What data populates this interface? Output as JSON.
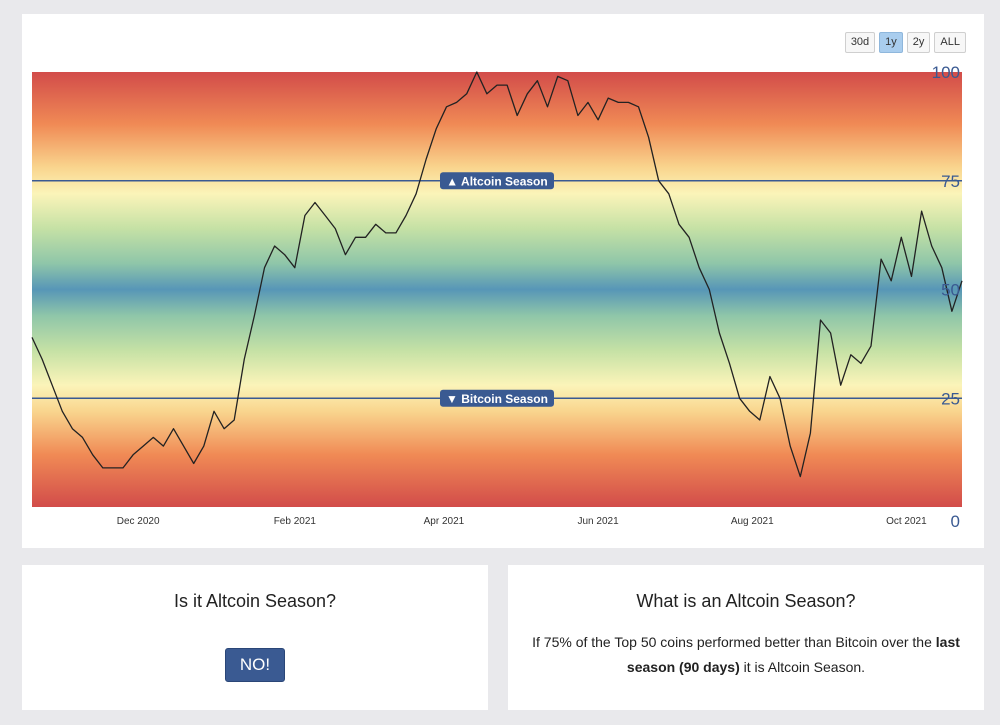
{
  "range_buttons": [
    {
      "label": "30d",
      "active": false
    },
    {
      "label": "1y",
      "active": true
    },
    {
      "label": "2y",
      "active": false
    },
    {
      "label": "ALL",
      "active": false
    }
  ],
  "colors": {
    "line": "#222222",
    "threshold_line": "#3a5a92",
    "label_bg": "#3a5a92",
    "tick": "#333333",
    "y_tick": "#3a5a92"
  },
  "chart_data": {
    "type": "line",
    "ylim": [
      0,
      100
    ],
    "y_ticks": [
      100,
      75,
      50,
      25,
      0
    ],
    "x_ticks": [
      {
        "x": "2020-12-01",
        "label": "Dec 2020"
      },
      {
        "x": "2021-02-01",
        "label": "Feb 2021"
      },
      {
        "x": "2021-04-01",
        "label": "Apr 2021"
      },
      {
        "x": "2021-06-01",
        "label": "Jun 2021"
      },
      {
        "x": "2021-08-01",
        "label": "Aug 2021"
      },
      {
        "x": "2021-10-01",
        "label": "Oct 2021"
      }
    ],
    "xlim": [
      "2020-10-20",
      "2021-10-23"
    ],
    "bands": [
      {
        "label": "▲ Altcoin Season",
        "y": 75
      },
      {
        "label": "▼ Bitcoin Season",
        "y": 25
      }
    ],
    "series": [
      {
        "x": [
          "2020-10-20",
          "2020-10-24",
          "2020-10-28",
          "2020-11-01",
          "2020-11-05",
          "2020-11-09",
          "2020-11-13",
          "2020-11-17",
          "2020-11-21",
          "2020-11-25",
          "2020-11-29",
          "2020-12-03",
          "2020-12-07",
          "2020-12-11",
          "2020-12-15",
          "2020-12-19",
          "2020-12-23",
          "2020-12-27",
          "2020-12-31",
          "2021-01-04",
          "2021-01-08",
          "2021-01-12",
          "2021-01-16",
          "2021-01-20",
          "2021-01-24",
          "2021-01-28",
          "2021-02-01",
          "2021-02-05",
          "2021-02-09",
          "2021-02-13",
          "2021-02-17",
          "2021-02-21",
          "2021-02-25",
          "2021-03-01",
          "2021-03-05",
          "2021-03-09",
          "2021-03-13",
          "2021-03-17",
          "2021-03-21",
          "2021-03-25",
          "2021-03-29",
          "2021-04-02",
          "2021-04-06",
          "2021-04-10",
          "2021-04-14",
          "2021-04-18",
          "2021-04-22",
          "2021-04-26",
          "2021-04-30",
          "2021-05-04",
          "2021-05-08",
          "2021-05-12",
          "2021-05-16",
          "2021-05-20",
          "2021-05-24",
          "2021-05-28",
          "2021-06-01",
          "2021-06-05",
          "2021-06-09",
          "2021-06-13",
          "2021-06-17",
          "2021-06-21",
          "2021-06-25",
          "2021-06-29",
          "2021-07-03",
          "2021-07-07",
          "2021-07-11",
          "2021-07-15",
          "2021-07-19",
          "2021-07-23",
          "2021-07-27",
          "2021-07-31",
          "2021-08-04",
          "2021-08-08",
          "2021-08-12",
          "2021-08-16",
          "2021-08-20",
          "2021-08-24",
          "2021-08-28",
          "2021-09-01",
          "2021-09-05",
          "2021-09-09",
          "2021-09-13",
          "2021-09-17",
          "2021-09-21",
          "2021-09-25",
          "2021-09-29",
          "2021-10-03",
          "2021-10-07",
          "2021-10-11",
          "2021-10-15",
          "2021-10-19",
          "2021-10-23"
        ],
        "y": [
          39,
          34,
          28,
          22,
          18,
          16,
          12,
          9,
          9,
          9,
          12,
          14,
          16,
          14,
          18,
          14,
          10,
          14,
          22,
          18,
          20,
          34,
          44,
          55,
          60,
          58,
          55,
          67,
          70,
          67,
          64,
          58,
          62,
          62,
          65,
          63,
          63,
          67,
          72,
          80,
          87,
          92,
          93,
          95,
          100,
          95,
          97,
          97,
          90,
          95,
          98,
          92,
          99,
          98,
          90,
          93,
          89,
          94,
          93,
          93,
          92,
          85,
          75,
          72,
          65,
          62,
          55,
          50,
          40,
          33,
          25,
          22,
          20,
          30,
          25,
          14,
          7,
          17,
          43,
          40,
          28,
          35,
          33,
          37,
          57,
          52,
          62,
          53,
          68,
          60,
          55,
          45,
          52
        ]
      }
    ]
  },
  "left_box": {
    "title": "Is it Altcoin Season?",
    "answer": "NO!"
  },
  "right_box": {
    "title": "What is an Altcoin Season?",
    "desc_part1": "If 75% of the Top 50 coins performed better than Bitcoin over the ",
    "desc_bold": "last season (90 days)",
    "desc_part2": " it is Altcoin Season."
  }
}
